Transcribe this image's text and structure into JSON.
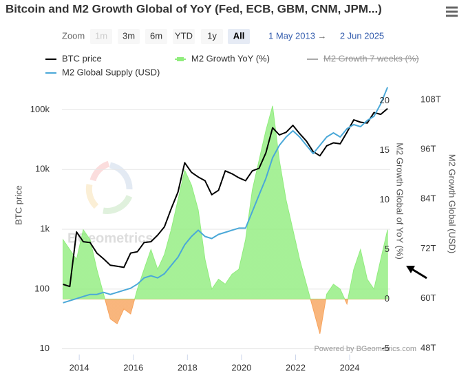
{
  "chart_data": {
    "type": "multi_axis_line_area",
    "title": "Bitcoin and M2 Growth Global of YoY (Fed, ECB, GBM, CNM, JPM...)",
    "y_label": "BTC price",
    "y2_label": "M2 Growth Global of YoY (%)",
    "y3_label": "M2 Growth Global (USD)",
    "credits": "Powered by BGeometrics.com",
    "watermark": "BGeometrics",
    "x": [
      2013.4,
      2013.65,
      2013.9,
      2014.15,
      2014.4,
      2014.65,
      2014.9,
      2015.15,
      2015.4,
      2015.65,
      2015.9,
      2016.15,
      2016.4,
      2016.65,
      2016.9,
      2017.15,
      2017.4,
      2017.65,
      2017.9,
      2018.15,
      2018.4,
      2018.65,
      2018.9,
      2019.15,
      2019.4,
      2019.65,
      2019.9,
      2020.15,
      2020.4,
      2020.65,
      2020.9,
      2021.15,
      2021.4,
      2021.65,
      2021.9,
      2022.15,
      2022.4,
      2022.65,
      2022.9,
      2023.15,
      2023.4,
      2023.65,
      2023.9,
      2024.15,
      2024.4,
      2024.65,
      2024.9,
      2025.15,
      2025.4
    ],
    "xlim": [
      2013.36,
      2025.5
    ],
    "xticks": [
      2014,
      2016,
      2018,
      2020,
      2022,
      2024
    ],
    "ylim": [
      8,
      250000
    ],
    "ylog": true,
    "yticks": [
      10,
      100,
      {
        "value": 1000,
        "label": "1k"
      },
      {
        "value": 10000,
        "label": "10k"
      },
      {
        "value": 100000,
        "label": "100k"
      }
    ],
    "y2lim": [
      -5.6,
      21.5
    ],
    "y2ticks": [
      -5,
      0,
      5,
      10,
      15,
      20
    ],
    "y3lim": [
      46.5,
      111.3
    ],
    "y3ticks": [
      {
        "value": 48,
        "label": "48T"
      },
      {
        "value": 60,
        "label": "60T"
      },
      {
        "value": 72,
        "label": "72T"
      },
      {
        "value": 84,
        "label": "84T"
      },
      {
        "value": 96,
        "label": "96T"
      },
      {
        "value": 108,
        "label": "108T"
      }
    ],
    "grid": true,
    "series": [
      {
        "name": "BTC price",
        "type": "line",
        "axis": "y",
        "color": "#000000",
        "values": [
          120,
          110,
          900,
          620,
          600,
          400,
          320,
          250,
          240,
          230,
          400,
          420,
          600,
          620,
          800,
          1100,
          2200,
          4200,
          13000,
          9000,
          7500,
          6500,
          3800,
          4500,
          9500,
          8500,
          7300,
          6500,
          9500,
          10500,
          19000,
          50000,
          38000,
          42000,
          55000,
          40000,
          30000,
          20000,
          17000,
          25000,
          28000,
          27000,
          42000,
          68000,
          62000,
          60000,
          90000,
          84000,
          105000
        ]
      },
      {
        "name": "M2 Growth YoY (%)",
        "type": "area",
        "axis": "y2",
        "color": "#90ed7d",
        "negative_color": "#f7a35c",
        "values": [
          6,
          5,
          4,
          7,
          6,
          3,
          0.5,
          -2,
          -2.5,
          -1,
          -1.5,
          1,
          3,
          5,
          3,
          4.5,
          7,
          10,
          13,
          11.5,
          9,
          4,
          1,
          2,
          1.5,
          2.5,
          3,
          6,
          11,
          14,
          17,
          19.5,
          14,
          10,
          7,
          4,
          1.5,
          -1,
          -3.5,
          0.5,
          1.5,
          1,
          -0.5,
          3,
          5,
          2,
          1,
          4,
          7
        ]
      },
      {
        "name": "M2 Growth 7 weeks (%)",
        "type": "line",
        "axis": "y2",
        "color": "#808080",
        "visible": false
      },
      {
        "name": "M2 Global Supply (USD)",
        "type": "line",
        "axis": "y3",
        "color": "#4aa8d8",
        "values": [
          59,
          59.5,
          60,
          60.5,
          61,
          61,
          61.5,
          61,
          61.5,
          62,
          62.5,
          63.5,
          65,
          65.5,
          65,
          66,
          68,
          70,
          73,
          75,
          76.5,
          75,
          74.5,
          75.5,
          76,
          76.5,
          77,
          77,
          81,
          85,
          89,
          94,
          97,
          99,
          100.5,
          99,
          97,
          95,
          97,
          99,
          100,
          99,
          101,
          102,
          101.5,
          103,
          104,
          107,
          111
        ]
      }
    ]
  },
  "range_selector": {
    "label": "Zoom",
    "buttons": [
      "1m",
      "3m",
      "6m",
      "YTD",
      "1y",
      "All"
    ],
    "selected": 5,
    "disabled": [
      0
    ],
    "from": "1 May 2013",
    "separator": "→",
    "to": "2 Jun 2025"
  }
}
